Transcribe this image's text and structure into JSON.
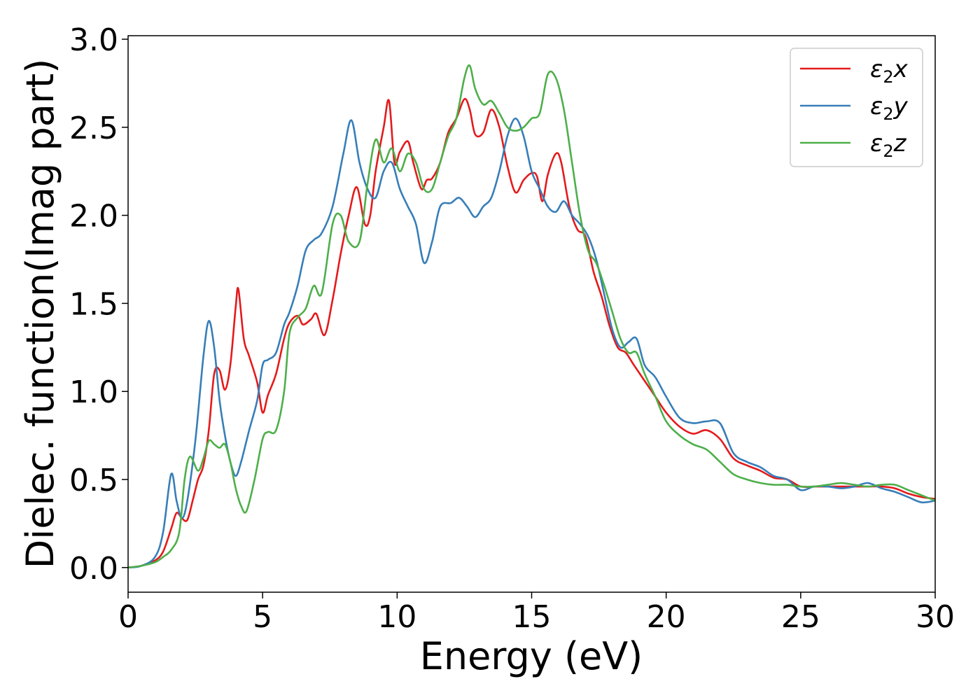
{
  "chart_data": {
    "type": "line",
    "title": "",
    "xlabel": "Energy (eV)",
    "ylabel": "Dielec. function(Imag part)",
    "xlim": [
      0,
      30
    ],
    "ylim": [
      -0.14,
      3.02
    ],
    "xticks": [
      0,
      5,
      10,
      15,
      20,
      25,
      30
    ],
    "xtick_labels": [
      "0",
      "5",
      "10",
      "15",
      "20",
      "25",
      "30"
    ],
    "yticks": [
      0.0,
      0.5,
      1.0,
      1.5,
      2.0,
      2.5,
      3.0
    ],
    "ytick_labels": [
      "0.0",
      "0.5",
      "1.0",
      "1.5",
      "2.0",
      "2.5",
      "3.0"
    ],
    "grid": false,
    "legend_position": "top-right",
    "series": [
      {
        "name": "ε₂x",
        "legend": {
          "base": "ε",
          "sub": "2",
          "var": "x"
        },
        "color": "#e41a1c",
        "x": [
          0,
          0.5,
          1,
          1.3,
          1.6,
          1.8,
          2.0,
          2.2,
          2.4,
          2.6,
          2.8,
          3.0,
          3.2,
          3.4,
          3.6,
          3.8,
          4.0,
          4.1,
          4.3,
          4.5,
          4.8,
          5.0,
          5.2,
          5.5,
          5.8,
          6.0,
          6.3,
          6.5,
          6.8,
          7.0,
          7.3,
          7.6,
          7.9,
          8.2,
          8.5,
          8.8,
          9.0,
          9.2,
          9.5,
          9.7,
          9.9,
          10.1,
          10.4,
          10.6,
          10.9,
          11.1,
          11.3,
          11.6,
          11.9,
          12.2,
          12.5,
          12.7,
          12.9,
          13.2,
          13.5,
          13.8,
          14.1,
          14.4,
          14.7,
          15.0,
          15.2,
          15.4,
          15.6,
          15.9,
          16.1,
          16.4,
          16.7,
          17.0,
          17.3,
          17.6,
          17.9,
          18.2,
          18.5,
          18.8,
          19.2,
          19.6,
          20.0,
          20.5,
          21.0,
          21.5,
          22.0,
          22.5,
          23.0,
          23.5,
          24.0,
          24.5,
          25.0,
          25.5,
          26.0,
          26.5,
          27.0,
          27.5,
          28.0,
          28.5,
          29.0,
          29.5,
          30.0
        ],
        "y": [
          0,
          0.01,
          0.04,
          0.09,
          0.22,
          0.31,
          0.28,
          0.27,
          0.38,
          0.5,
          0.58,
          0.78,
          1.1,
          1.12,
          1.01,
          1.15,
          1.48,
          1.58,
          1.3,
          1.2,
          1.05,
          0.88,
          0.98,
          1.1,
          1.3,
          1.39,
          1.43,
          1.38,
          1.41,
          1.44,
          1.32,
          1.52,
          1.78,
          2.0,
          2.16,
          1.95,
          2.0,
          2.25,
          2.5,
          2.65,
          2.3,
          2.36,
          2.42,
          2.3,
          2.15,
          2.2,
          2.21,
          2.3,
          2.47,
          2.55,
          2.66,
          2.6,
          2.46,
          2.47,
          2.6,
          2.5,
          2.28,
          2.13,
          2.2,
          2.24,
          2.22,
          2.08,
          2.23,
          2.35,
          2.3,
          2.05,
          1.92,
          1.88,
          1.68,
          1.54,
          1.37,
          1.25,
          1.22,
          1.15,
          1.06,
          0.97,
          0.88,
          0.8,
          0.76,
          0.78,
          0.73,
          0.62,
          0.58,
          0.55,
          0.51,
          0.5,
          0.46,
          0.46,
          0.46,
          0.46,
          0.46,
          0.46,
          0.46,
          0.45,
          0.42,
          0.4,
          0.39
        ]
      },
      {
        "name": "ε₂y",
        "legend": {
          "base": "ε",
          "sub": "2",
          "var": "y"
        },
        "color": "#377eb8",
        "x": [
          0,
          0.5,
          1,
          1.3,
          1.6,
          1.8,
          2.0,
          2.2,
          2.5,
          2.8,
          3.0,
          3.2,
          3.4,
          3.6,
          3.8,
          4.0,
          4.2,
          4.5,
          4.8,
          5.0,
          5.2,
          5.5,
          5.8,
          6.0,
          6.3,
          6.6,
          6.9,
          7.2,
          7.6,
          8.0,
          8.3,
          8.6,
          8.9,
          9.2,
          9.5,
          9.8,
          10.1,
          10.4,
          10.7,
          11.0,
          11.3,
          11.6,
          12.0,
          12.3,
          12.6,
          12.9,
          13.2,
          13.5,
          13.8,
          14.1,
          14.4,
          14.7,
          15.0,
          15.3,
          15.6,
          15.9,
          16.2,
          16.5,
          16.8,
          17.1,
          17.4,
          17.7,
          18.0,
          18.3,
          18.6,
          18.9,
          19.2,
          19.6,
          20.0,
          20.5,
          21.0,
          21.5,
          22.0,
          22.5,
          23.0,
          23.5,
          24.0,
          24.5,
          25.0,
          25.5,
          26.0,
          26.5,
          27.0,
          27.5,
          28.0,
          28.5,
          29.0,
          29.5,
          30.0
        ],
        "y": [
          0,
          0.01,
          0.06,
          0.2,
          0.53,
          0.38,
          0.28,
          0.38,
          0.72,
          1.2,
          1.4,
          1.25,
          0.95,
          0.75,
          0.6,
          0.52,
          0.6,
          0.78,
          0.95,
          1.15,
          1.18,
          1.22,
          1.38,
          1.45,
          1.6,
          1.8,
          1.86,
          1.9,
          2.05,
          2.35,
          2.54,
          2.3,
          2.15,
          2.1,
          2.25,
          2.3,
          2.15,
          2.05,
          1.95,
          1.73,
          1.85,
          2.05,
          2.07,
          2.1,
          2.05,
          1.99,
          2.05,
          2.1,
          2.25,
          2.45,
          2.55,
          2.45,
          2.25,
          2.15,
          2.05,
          2.02,
          2.08,
          2.0,
          1.95,
          1.88,
          1.75,
          1.55,
          1.35,
          1.25,
          1.28,
          1.3,
          1.15,
          1.08,
          0.97,
          0.85,
          0.82,
          0.83,
          0.82,
          0.65,
          0.6,
          0.57,
          0.52,
          0.5,
          0.44,
          0.46,
          0.46,
          0.45,
          0.46,
          0.48,
          0.45,
          0.43,
          0.4,
          0.37,
          0.38
        ]
      },
      {
        "name": "ε₂z",
        "legend": {
          "base": "ε",
          "sub": "2",
          "var": "z"
        },
        "color": "#4daf4a",
        "x": [
          0,
          0.5,
          1,
          1.3,
          1.6,
          1.9,
          2.1,
          2.3,
          2.6,
          2.8,
          3.0,
          3.2,
          3.4,
          3.6,
          3.8,
          4.0,
          4.2,
          4.4,
          4.7,
          5.0,
          5.2,
          5.5,
          5.8,
          6.0,
          6.3,
          6.6,
          6.9,
          7.2,
          7.6,
          7.9,
          8.2,
          8.6,
          8.9,
          9.2,
          9.5,
          9.8,
          10.1,
          10.4,
          10.7,
          11.0,
          11.3,
          11.6,
          11.9,
          12.2,
          12.5,
          12.7,
          12.9,
          13.2,
          13.5,
          13.8,
          14.1,
          14.4,
          14.7,
          15.0,
          15.3,
          15.6,
          15.9,
          16.2,
          16.5,
          16.8,
          17.1,
          17.4,
          17.7,
          18.0,
          18.3,
          18.6,
          18.9,
          19.2,
          19.6,
          20.0,
          20.5,
          21.0,
          21.5,
          22.0,
          22.5,
          23.0,
          23.5,
          24.0,
          24.5,
          25.0,
          25.5,
          26.0,
          26.5,
          27.0,
          27.5,
          28.0,
          28.5,
          29.0,
          29.5,
          30.0
        ],
        "y": [
          0,
          0.01,
          0.03,
          0.06,
          0.1,
          0.2,
          0.5,
          0.63,
          0.55,
          0.62,
          0.72,
          0.7,
          0.68,
          0.7,
          0.6,
          0.45,
          0.35,
          0.32,
          0.5,
          0.73,
          0.77,
          0.78,
          1.0,
          1.33,
          1.42,
          1.47,
          1.6,
          1.56,
          1.95,
          2.0,
          1.85,
          1.85,
          2.18,
          2.43,
          2.3,
          2.38,
          2.25,
          2.35,
          2.3,
          2.15,
          2.15,
          2.3,
          2.45,
          2.55,
          2.78,
          2.85,
          2.72,
          2.63,
          2.65,
          2.58,
          2.5,
          2.48,
          2.5,
          2.55,
          2.58,
          2.8,
          2.78,
          2.6,
          2.3,
          2.0,
          1.8,
          1.73,
          1.6,
          1.45,
          1.3,
          1.22,
          1.22,
          1.1,
          0.97,
          0.83,
          0.75,
          0.7,
          0.67,
          0.6,
          0.53,
          0.5,
          0.48,
          0.47,
          0.47,
          0.46,
          0.46,
          0.47,
          0.48,
          0.47,
          0.46,
          0.47,
          0.47,
          0.44,
          0.41,
          0.38
        ]
      }
    ]
  }
}
